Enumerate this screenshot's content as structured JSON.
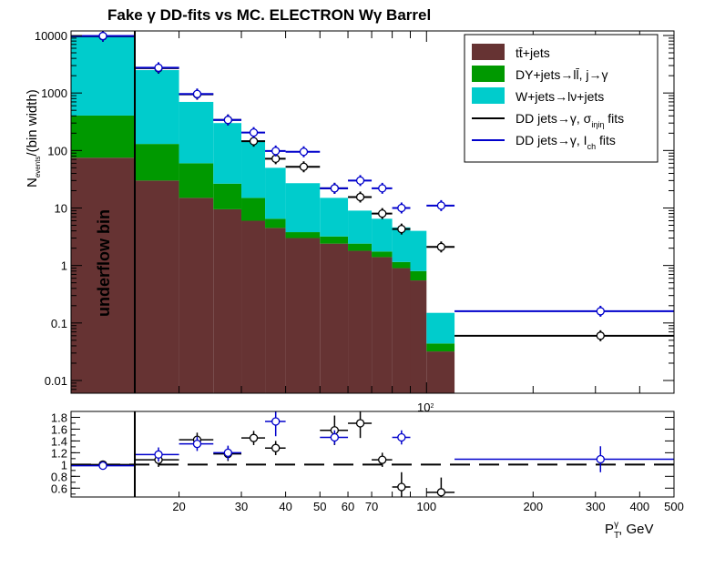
{
  "chart_data": {
    "type": "bar",
    "title": "Fake  γ DD-fits vs MC. ELECTRON Wγ  Barrel",
    "ylabel_top": "N_events/(bin width)",
    "xlabel": "P_T^γ, GeV",
    "annotation": "underflow bin",
    "ylim": [
      0.006,
      12000
    ],
    "ratio_ylim": [
      0.45,
      1.9
    ],
    "xlim": [
      10,
      500
    ],
    "log_x": true,
    "log_y": true,
    "y_ticks": [
      "0.01",
      "0.1",
      "1",
      "10",
      "100",
      "1000",
      "10000"
    ],
    "ratio_y_ticks": [
      "0.6",
      "0.8",
      "1",
      "1.2",
      "1.4",
      "1.6",
      "1.8"
    ],
    "x_ticks": [
      "20",
      "30",
      "40",
      "50",
      "60",
      "70",
      "100",
      "200",
      "300",
      "400",
      "500"
    ],
    "x_axis_multiplier": "10^2",
    "bin_edges": [
      10,
      15,
      20,
      25,
      30,
      35,
      40,
      50,
      60,
      70,
      80,
      90,
      100,
      120,
      500
    ],
    "legend": [
      {
        "label": "tt̄+jets",
        "color": "#663333",
        "kind": "fill"
      },
      {
        "label": "DY+jets→ll̄, j→γ",
        "color": "#009900",
        "kind": "fill"
      },
      {
        "label": "W+jets→lν+jets",
        "color": "#00cccc",
        "kind": "fill"
      },
      {
        "label": "DD jets→γ, σ_iηiη fits",
        "color": "#000000",
        "kind": "line"
      },
      {
        "label": "DD jets→γ, I_ch fits",
        "color": "#0000cc",
        "kind": "line"
      }
    ],
    "series": [
      {
        "name": "tt̄+jets",
        "values": [
          75,
          30,
          15,
          9.5,
          6,
          4.5,
          3,
          2.4,
          1.8,
          1.4,
          0.9,
          0.55,
          0.032
        ]
      },
      {
        "name": "DY+jets→ll̄, j→γ",
        "values": [
          330,
          100,
          45,
          17,
          9,
          2,
          0.8,
          0.8,
          0.6,
          0.35,
          0.25,
          0.25,
          0.012
        ]
      },
      {
        "name": "W+jets→lν+jets",
        "values": [
          9595,
          2370,
          640,
          273.5,
          135,
          43.5,
          23.2,
          11.8,
          6.6,
          4.75,
          3.45,
          3.2,
          0.106
        ]
      },
      {
        "name": "DD jets→γ, σ_iηiη fits",
        "points": [
          {
            "x": 12.5,
            "y": 9700,
            "ratio": 1.0
          },
          {
            "x": 17.5,
            "y": 2700,
            "ratio": 1.08
          },
          {
            "x": 22.5,
            "y": 950,
            "ratio": 1.42
          },
          {
            "x": 27.5,
            "y": 340,
            "ratio": 1.18
          },
          {
            "x": 32.5,
            "y": 145,
            "ratio": 1.45
          },
          {
            "x": 37.5,
            "y": 72,
            "ratio": 1.28
          },
          {
            "x": 45,
            "y": 52,
            "ratio": 0
          },
          {
            "x": 55,
            "y": 22,
            "ratio": 1.58
          },
          {
            "x": 65,
            "y": 15.5,
            "ratio": 1.7
          },
          {
            "x": 75,
            "y": 8,
            "ratio": 1.08
          },
          {
            "x": 85,
            "y": 4.3,
            "ratio": 0.62
          },
          {
            "x": 110,
            "y": 2.1,
            "ratio": 0.53
          },
          {
            "x": 310,
            "y": 0.06,
            "ratio": 0
          }
        ]
      },
      {
        "name": "DD jets→γ, I_ch fits",
        "points": [
          {
            "x": 12.5,
            "y": 9800,
            "ratio": 0.98
          },
          {
            "x": 17.5,
            "y": 2750,
            "ratio": 1.17
          },
          {
            "x": 22.5,
            "y": 960,
            "ratio": 1.35
          },
          {
            "x": 27.5,
            "y": 340,
            "ratio": 1.2
          },
          {
            "x": 32.5,
            "y": 205,
            "ratio": 0
          },
          {
            "x": 37.5,
            "y": 98,
            "ratio": 1.73
          },
          {
            "x": 45,
            "y": 95,
            "ratio": 0
          },
          {
            "x": 55,
            "y": 22,
            "ratio": 1.46
          },
          {
            "x": 65,
            "y": 30,
            "ratio": 0
          },
          {
            "x": 75,
            "y": 22,
            "ratio": 0
          },
          {
            "x": 85,
            "y": 10,
            "ratio": 1.46
          },
          {
            "x": 110,
            "y": 11,
            "ratio": 0
          },
          {
            "x": 310,
            "y": 0.16,
            "ratio": 1.09
          }
        ]
      }
    ]
  }
}
